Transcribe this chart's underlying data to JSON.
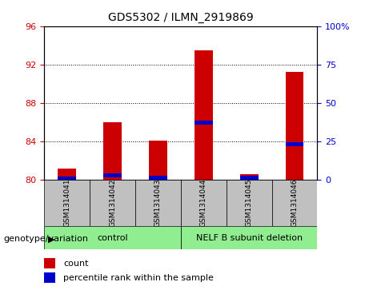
{
  "title": "GDS5302 / ILMN_2919869",
  "samples": [
    "GSM1314041",
    "GSM1314042",
    "GSM1314043",
    "GSM1314044",
    "GSM1314045",
    "GSM1314046"
  ],
  "count_values": [
    81.2,
    86.0,
    84.1,
    93.5,
    80.6,
    91.2
  ],
  "percentile_values": [
    1.0,
    3.0,
    1.5,
    37.0,
    1.5,
    23.0
  ],
  "baseline": 80,
  "ylim_left": [
    80,
    96
  ],
  "ylim_right": [
    0,
    100
  ],
  "yticks_left": [
    80,
    84,
    88,
    92,
    96
  ],
  "yticks_right": [
    0,
    25,
    50,
    75,
    100
  ],
  "yticklabels_right": [
    "0",
    "25",
    "50",
    "75",
    "100%"
  ],
  "groups": [
    {
      "label": "control",
      "indices": [
        0,
        1,
        2
      ],
      "color": "#90EE90"
    },
    {
      "label": "NELF B subunit deletion",
      "indices": [
        3,
        4,
        5
      ],
      "color": "#90EE90"
    }
  ],
  "bar_color": "#CC0000",
  "percentile_color": "#0000CC",
  "bar_width": 0.4,
  "grid_color": "#000000",
  "bg_color": "#FFFFFF",
  "tick_label_color_left": "#CC0000",
  "tick_label_color_right": "#0000CC",
  "xlabel_area_color": "#C0C0C0",
  "group_area_color": "#90EE90",
  "legend_count_label": "count",
  "legend_percentile_label": "percentile rank within the sample",
  "genotype_label": "genotype/variation"
}
